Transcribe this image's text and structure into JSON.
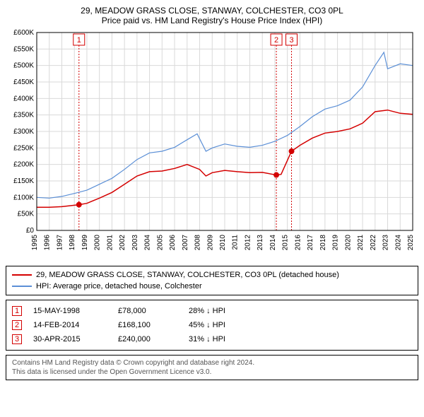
{
  "title": {
    "line1": "29, MEADOW GRASS CLOSE, STANWAY, COLCHESTER, CO3 0PL",
    "line2": "Price paid vs. HM Land Registry's House Price Index (HPI)"
  },
  "chart": {
    "type": "line",
    "background_color": "#ffffff",
    "grid_color": "#d9d9d9",
    "axis_fontsize": 10,
    "ylim": [
      0,
      600000
    ],
    "ytick_step": 50000,
    "yticks": [
      "£0",
      "£50K",
      "£100K",
      "£150K",
      "£200K",
      "£250K",
      "£300K",
      "£350K",
      "£400K",
      "£450K",
      "£500K",
      "£550K",
      "£600K"
    ],
    "xlim": [
      1995,
      2025
    ],
    "xticks": [
      1995,
      1996,
      1997,
      1998,
      1999,
      2000,
      2001,
      2002,
      2003,
      2004,
      2005,
      2006,
      2007,
      2008,
      2009,
      2010,
      2011,
      2012,
      2013,
      2014,
      2015,
      2016,
      2017,
      2018,
      2019,
      2020,
      2021,
      2022,
      2023,
      2024,
      2025
    ],
    "series_red": {
      "color": "#d40000",
      "name": "29, MEADOW GRASS CLOSE, STANWAY, COLCHESTER, CO3 0PL (detached house)",
      "points": [
        [
          1995,
          70000
        ],
        [
          1996,
          70000
        ],
        [
          1997,
          72000
        ],
        [
          1998.37,
          78000
        ],
        [
          1999,
          82000
        ],
        [
          2000,
          98000
        ],
        [
          2001,
          115000
        ],
        [
          2002,
          140000
        ],
        [
          2003,
          165000
        ],
        [
          2004,
          178000
        ],
        [
          2005,
          180000
        ],
        [
          2006,
          188000
        ],
        [
          2007,
          200000
        ],
        [
          2008,
          185000
        ],
        [
          2008.5,
          165000
        ],
        [
          2009,
          175000
        ],
        [
          2010,
          182000
        ],
        [
          2011,
          178000
        ],
        [
          2012,
          175000
        ],
        [
          2013,
          176000
        ],
        [
          2014.12,
          168100
        ],
        [
          2014.5,
          170000
        ],
        [
          2015.33,
          240000
        ],
        [
          2016,
          258000
        ],
        [
          2017,
          280000
        ],
        [
          2018,
          295000
        ],
        [
          2019,
          300000
        ],
        [
          2020,
          308000
        ],
        [
          2021,
          325000
        ],
        [
          2022,
          360000
        ],
        [
          2023,
          365000
        ],
        [
          2024,
          355000
        ],
        [
          2025,
          352000
        ]
      ]
    },
    "series_blue": {
      "color": "#5b8fd6",
      "name": "HPI: Average price, detached house, Colchester",
      "points": [
        [
          1995,
          100000
        ],
        [
          1996,
          98000
        ],
        [
          1997,
          103000
        ],
        [
          1998,
          112000
        ],
        [
          1999,
          122000
        ],
        [
          2000,
          140000
        ],
        [
          2001,
          158000
        ],
        [
          2002,
          185000
        ],
        [
          2003,
          215000
        ],
        [
          2004,
          235000
        ],
        [
          2005,
          240000
        ],
        [
          2006,
          252000
        ],
        [
          2007,
          275000
        ],
        [
          2007.8,
          293000
        ],
        [
          2008.5,
          240000
        ],
        [
          2009,
          250000
        ],
        [
          2010,
          262000
        ],
        [
          2011,
          255000
        ],
        [
          2012,
          252000
        ],
        [
          2013,
          258000
        ],
        [
          2014,
          270000
        ],
        [
          2015,
          288000
        ],
        [
          2016,
          315000
        ],
        [
          2017,
          345000
        ],
        [
          2018,
          368000
        ],
        [
          2019,
          378000
        ],
        [
          2020,
          395000
        ],
        [
          2021,
          435000
        ],
        [
          2022,
          500000
        ],
        [
          2022.7,
          540000
        ],
        [
          2023,
          490000
        ],
        [
          2024,
          505000
        ],
        [
          2025,
          500000
        ]
      ]
    },
    "sale_points": [
      {
        "x": 1998.37,
        "y": 78000
      },
      {
        "x": 2014.12,
        "y": 168100
      },
      {
        "x": 2015.33,
        "y": 240000
      }
    ],
    "markers": [
      {
        "n": "1",
        "x": 1998.37,
        "color": "#d40000"
      },
      {
        "n": "2",
        "x": 2014.12,
        "color": "#d40000"
      },
      {
        "n": "3",
        "x": 2015.33,
        "color": "#d40000"
      }
    ]
  },
  "legend": [
    {
      "color": "#d40000",
      "label": "29, MEADOW GRASS CLOSE, STANWAY, COLCHESTER, CO3 0PL (detached house)"
    },
    {
      "color": "#5b8fd6",
      "label": "HPI: Average price, detached house, Colchester"
    }
  ],
  "transactions": [
    {
      "n": "1",
      "date": "15-MAY-1998",
      "price": "£78,000",
      "diff": "28% ↓ HPI",
      "color": "#d40000"
    },
    {
      "n": "2",
      "date": "14-FEB-2014",
      "price": "£168,100",
      "diff": "45% ↓ HPI",
      "color": "#d40000"
    },
    {
      "n": "3",
      "date": "30-APR-2015",
      "price": "£240,000",
      "diff": "31% ↓ HPI",
      "color": "#d40000"
    }
  ],
  "copyright": {
    "line1": "Contains HM Land Registry data © Crown copyright and database right 2024.",
    "line2": "This data is licensed under the Open Government Licence v3.0."
  }
}
